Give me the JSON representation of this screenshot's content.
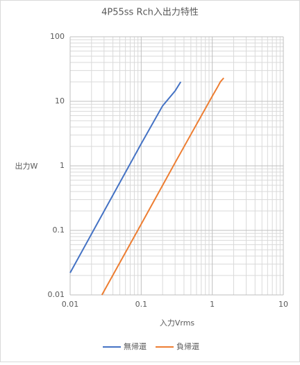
{
  "chart_data": {
    "type": "line",
    "title": "4P55ss Rch入出力特性",
    "x_label": "入力Vrms",
    "y_label": "出力W",
    "xscale": "log",
    "yscale": "log",
    "grid": true,
    "legend": "bottom",
    "xlim": [
      0.01,
      10
    ],
    "xticks": [
      0.01,
      0.1,
      1,
      10
    ],
    "ylim": [
      0.01,
      100
    ],
    "yticks": [
      0.01,
      0.1,
      1,
      10,
      100
    ],
    "series": [
      {
        "name": "無帰還",
        "color": "#4472c4",
        "x": [
          0.01,
          0.02,
          0.05,
          0.1,
          0.2,
          0.3,
          0.36
        ],
        "values": [
          0.022,
          0.088,
          0.55,
          2.2,
          8.5,
          14.5,
          20
        ]
      },
      {
        "name": "負帰還",
        "color": "#ed7d31",
        "x": [
          0.028,
          0.1,
          0.3,
          1,
          1.2,
          1.3,
          1.45
        ],
        "values": [
          0.01,
          0.125,
          1.12,
          12,
          17,
          20,
          23
        ]
      }
    ]
  }
}
